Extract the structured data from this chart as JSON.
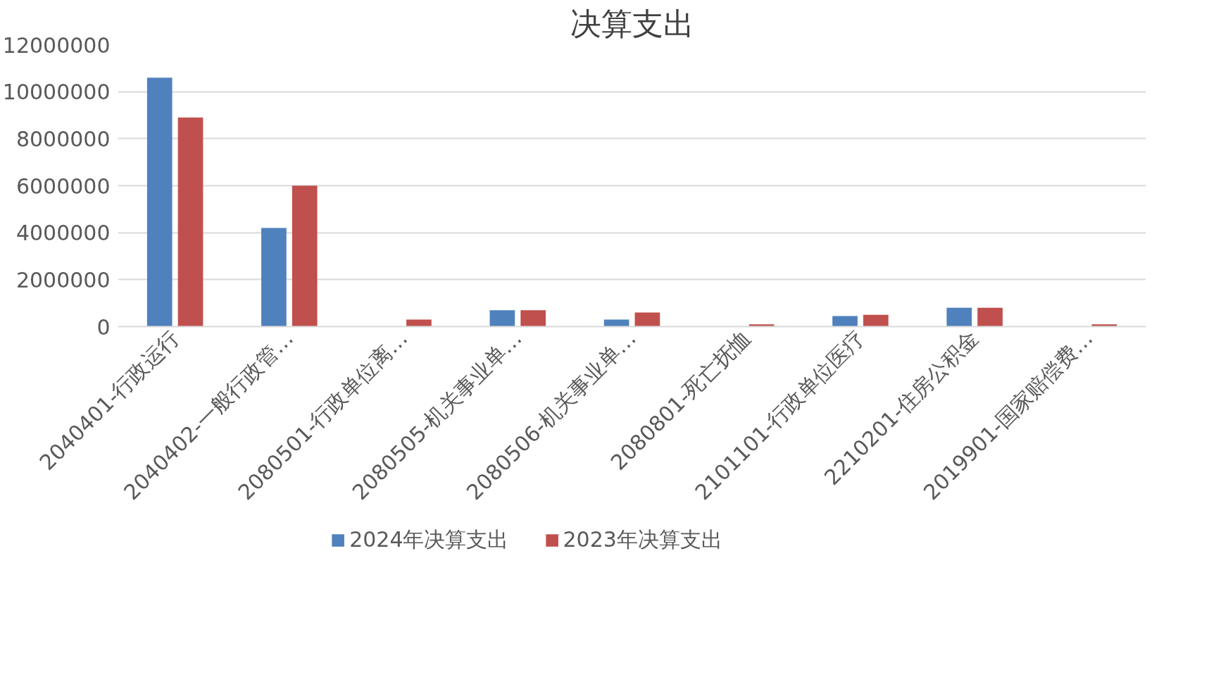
{
  "chart_data": {
    "type": "bar",
    "title": "决算支出",
    "categories": [
      "2040401-行政运行",
      "2040402-一般行政管…",
      "2080501-行政单位离…",
      "2080505-机关事业单…",
      "2080506-机关事业单…",
      "2080801-死亡抚恤",
      "2101101-行政单位医疗",
      "2210201-住房公积金",
      "2019901-国家赔偿费…"
    ],
    "series": [
      {
        "name": "2024年决算支出",
        "color": "#4f81bd",
        "values": [
          10600000,
          4200000,
          null,
          700000,
          300000,
          null,
          450000,
          800000,
          null
        ]
      },
      {
        "name": "2023年决算支出",
        "color": "#c0504d",
        "values": [
          8900000,
          6000000,
          300000,
          700000,
          600000,
          100000,
          500000,
          800000,
          100000
        ]
      }
    ],
    "ylim": [
      0,
      12000000
    ],
    "yticks": [
      0,
      2000000,
      4000000,
      6000000,
      8000000,
      10000000,
      12000000
    ],
    "grid": "y",
    "legend": "bottom"
  }
}
